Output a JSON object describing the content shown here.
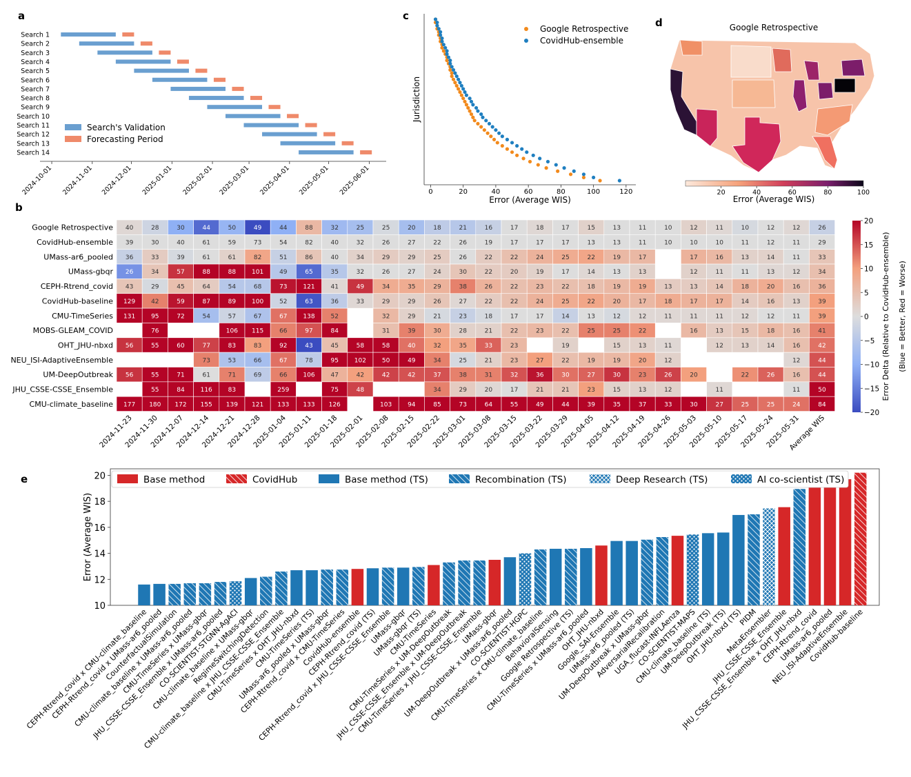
{
  "chart_data": [
    {
      "panel": "a",
      "type": "gantt",
      "rows": [
        "Search 1",
        "Search 2",
        "Search 3",
        "Search 4",
        "Search 5",
        "Search 6",
        "Search 7",
        "Search 8",
        "Search 9",
        "Search 10",
        "Search 11",
        "Search 12",
        "Search 13",
        "Search 14"
      ],
      "validation": [
        [
          "2024-10-08",
          "2024-11-19"
        ],
        [
          "2024-10-22",
          "2024-12-03"
        ],
        [
          "2024-11-05",
          "2024-12-17"
        ],
        [
          "2024-11-19",
          "2024-12-31"
        ],
        [
          "2024-12-03",
          "2025-01-14"
        ],
        [
          "2024-12-17",
          "2025-01-28"
        ],
        [
          "2024-12-31",
          "2025-02-11"
        ],
        [
          "2025-01-14",
          "2025-02-25"
        ],
        [
          "2025-01-28",
          "2025-03-11"
        ],
        [
          "2025-02-11",
          "2025-03-25"
        ],
        [
          "2025-02-25",
          "2025-04-08"
        ],
        [
          "2025-03-11",
          "2025-04-22"
        ],
        [
          "2025-03-25",
          "2025-05-06"
        ],
        [
          "2025-04-08",
          "2025-05-20"
        ]
      ],
      "forecasting": [
        [
          "2024-11-24",
          "2024-12-03"
        ],
        [
          "2024-12-08",
          "2024-12-17"
        ],
        [
          "2024-12-22",
          "2024-12-31"
        ],
        [
          "2025-01-05",
          "2025-01-14"
        ],
        [
          "2025-01-19",
          "2025-01-28"
        ],
        [
          "2025-02-02",
          "2025-02-11"
        ],
        [
          "2025-02-16",
          "2025-02-25"
        ],
        [
          "2025-03-02",
          "2025-03-11"
        ],
        [
          "2025-03-16",
          "2025-03-25"
        ],
        [
          "2025-03-30",
          "2025-04-08"
        ],
        [
          "2025-04-13",
          "2025-04-22"
        ],
        [
          "2025-04-27",
          "2025-05-06"
        ],
        [
          "2025-05-11",
          "2025-05-20"
        ],
        [
          "2025-05-25",
          "2025-06-03"
        ]
      ],
      "xticks": [
        "2024-10-01",
        "2024-11-01",
        "2024-12-01",
        "2025-01-01",
        "2025-02-01",
        "2025-03-01",
        "2025-04-01",
        "2025-05-01",
        "2025-06-01"
      ],
      "legend": [
        "Search's Validation",
        "Forecasting Period"
      ],
      "colors": {
        "validation": "#6a9fd0",
        "forecasting": "#ef8a6a"
      }
    },
    {
      "panel": "c",
      "type": "scatter",
      "xlabel": "Error (Average WIS)",
      "ylabel": "Jurisdiction",
      "xticks": [
        0,
        20,
        40,
        60,
        80,
        100,
        120
      ],
      "xlim": [
        -4,
        126
      ],
      "n_jurisdictions": 52,
      "series": [
        {
          "name": "Google Retrospective",
          "color": "#f28a1c",
          "values": [
            3,
            3,
            4,
            4,
            5,
            5,
            6,
            6,
            7,
            7,
            8,
            9,
            10,
            10,
            11,
            12,
            12,
            13,
            13,
            14,
            15,
            16,
            17,
            18,
            19,
            20,
            21,
            22,
            23,
            24,
            25,
            26,
            27,
            29,
            31,
            33,
            35,
            37,
            39,
            41,
            44,
            47,
            50,
            53,
            57,
            61,
            66,
            71,
            78,
            86,
            94,
            104
          ]
        },
        {
          "name": "CovidHub-ensemble",
          "color": "#1f7fc0",
          "values": [
            3,
            4,
            4,
            5,
            6,
            6,
            7,
            7,
            8,
            9,
            10,
            10,
            11,
            12,
            12,
            13,
            14,
            15,
            16,
            17,
            18,
            19,
            20,
            21,
            22,
            24,
            25,
            26,
            28,
            29,
            31,
            32,
            34,
            36,
            38,
            40,
            42,
            44,
            47,
            50,
            53,
            56,
            59,
            63,
            67,
            72,
            77,
            82,
            88,
            94,
            100,
            116
          ]
        }
      ]
    },
    {
      "panel": "b",
      "type": "heatmap",
      "rows": [
        "Google Retrospective",
        "CovidHub-ensemble",
        "UMass-ar6_pooled",
        "UMass-gbqr",
        "CEPH-Rtrend_covid",
        "CovidHub-baseline",
        "CMU-TimeSeries",
        "MOBS-GLEAM_COVID",
        "OHT_JHU-nbxd",
        "NEU_ISI-AdaptiveEnsemble",
        "UM-DeepOutbreak",
        "JHU_CSSE-CSSE_Ensemble",
        "CMU-climate_baseline"
      ],
      "columns": [
        "2024-11-23",
        "2024-11-30",
        "2024-12-07",
        "2024-12-14",
        "2024-12-21",
        "2024-12-28",
        "2025-01-04",
        "2025-01-11",
        "2025-01-18",
        "2025-02-01",
        "2025-02-08",
        "2025-02-15",
        "2025-02-22",
        "2025-03-01",
        "2025-03-08",
        "2025-03-15",
        "2025-03-22",
        "2025-03-29",
        "2025-04-05",
        "2025-04-12",
        "2025-04-19",
        "2025-04-26",
        "2025-05-03",
        "2025-05-10",
        "2025-05-17",
        "2025-05-24",
        "2025-05-31",
        "Average WIS"
      ],
      "values": [
        [
          40,
          28,
          30,
          44,
          50,
          49,
          44,
          88,
          32,
          25,
          25,
          20,
          18,
          21,
          16,
          17,
          18,
          17,
          15,
          13,
          11,
          10,
          12,
          11,
          10,
          12,
          12,
          26
        ],
        [
          39,
          30,
          40,
          61,
          59,
          73,
          54,
          82,
          40,
          32,
          26,
          27,
          22,
          26,
          19,
          17,
          17,
          17,
          13,
          13,
          11,
          10,
          10,
          10,
          11,
          12,
          11,
          29
        ],
        [
          36,
          33,
          39,
          61,
          61,
          82,
          51,
          86,
          40,
          34,
          29,
          29,
          25,
          26,
          22,
          22,
          24,
          25,
          22,
          19,
          17,
          null,
          17,
          16,
          13,
          14,
          11,
          33
        ],
        [
          26,
          34,
          57,
          88,
          88,
          101,
          49,
          65,
          35,
          32,
          26,
          27,
          24,
          30,
          22,
          20,
          19,
          17,
          14,
          13,
          13,
          null,
          12,
          11,
          11,
          13,
          12,
          34
        ],
        [
          43,
          29,
          45,
          64,
          54,
          68,
          73,
          121,
          41,
          49,
          34,
          35,
          29,
          38,
          26,
          22,
          23,
          22,
          18,
          19,
          19,
          13,
          13,
          14,
          18,
          20,
          16,
          36
        ],
        [
          129,
          42,
          59,
          87,
          89,
          100,
          52,
          63,
          36,
          33,
          29,
          29,
          26,
          27,
          22,
          22,
          24,
          25,
          22,
          20,
          17,
          18,
          17,
          17,
          14,
          16,
          13,
          39
        ],
        [
          131,
          95,
          72,
          54,
          57,
          67,
          67,
          138,
          52,
          null,
          32,
          29,
          21,
          23,
          18,
          17,
          17,
          14,
          13,
          12,
          12,
          11,
          11,
          11,
          12,
          12,
          11,
          39
        ],
        [
          null,
          76,
          null,
          null,
          106,
          115,
          66,
          97,
          84,
          null,
          31,
          39,
          30,
          28,
          21,
          22,
          23,
          22,
          25,
          25,
          22,
          null,
          16,
          13,
          15,
          18,
          16,
          41
        ],
        [
          56,
          55,
          60,
          77,
          83,
          83,
          92,
          43,
          45,
          58,
          58,
          40,
          32,
          35,
          33,
          23,
          null,
          19,
          null,
          15,
          13,
          11,
          null,
          12,
          13,
          14,
          16,
          42
        ],
        [
          null,
          null,
          null,
          73,
          53,
          66,
          67,
          78,
          95,
          102,
          50,
          49,
          34,
          25,
          21,
          23,
          27,
          22,
          19,
          19,
          20,
          12,
          null,
          null,
          null,
          null,
          12,
          44
        ],
        [
          56,
          55,
          71,
          61,
          71,
          69,
          66,
          106,
          47,
          42,
          42,
          42,
          37,
          38,
          31,
          32,
          36,
          30,
          27,
          30,
          23,
          26,
          20,
          null,
          22,
          26,
          16,
          44
        ],
        [
          null,
          55,
          84,
          116,
          83,
          null,
          259,
          null,
          75,
          48,
          null,
          null,
          34,
          29,
          20,
          17,
          21,
          21,
          23,
          15,
          13,
          12,
          null,
          11,
          null,
          null,
          11,
          50
        ],
        [
          177,
          180,
          172,
          155,
          139,
          121,
          133,
          133,
          126,
          null,
          103,
          94,
          85,
          73,
          64,
          55,
          49,
          44,
          39,
          35,
          37,
          33,
          30,
          27,
          25,
          25,
          24,
          84
        ]
      ],
      "reference_row": "CovidHub-ensemble",
      "colorbar": {
        "label": "Error Delta (Relative to CovidHub-ensemble)",
        "sublabel": "(Blue = Better, Red = Worse)",
        "range": [
          -20,
          20
        ],
        "ticks": [
          20,
          15,
          10,
          5,
          0,
          -5,
          -10,
          -15,
          -20
        ]
      }
    },
    {
      "panel": "d",
      "type": "choropleth",
      "title": "Google Retrospective",
      "colorbar": {
        "label": "Error (Average WIS)",
        "range": [
          0,
          100
        ],
        "ticks": [
          20,
          40,
          60,
          80,
          100
        ]
      }
    },
    {
      "panel": "e",
      "type": "bar",
      "ylabel": "Error (Average WIS)",
      "ylim": [
        10,
        20.5
      ],
      "yticks": [
        10,
        12,
        14,
        16,
        18,
        20
      ],
      "legend": [
        "Base method",
        "CovidHub",
        "Base method (TS)",
        "Recombination (TS)",
        "Deep Research (TS)",
        "AI co-scientist (TS)"
      ],
      "colors": {
        "red": "#d62728",
        "blue": "#1f77b4"
      },
      "categories": [
        "CEPH-Rtrend_covid x CMU-climate_baseline",
        "CEPH-Rtrend_covid x UMass-ar6_pooled",
        "CounterfactualSimulation",
        "CMU-climate_baseline x UMass-ar6_pooled",
        "CMU-TimeSeries x UMass-gbqr",
        "JHU_CSSE-CSSE_Ensemble x UMass-ar6_pooled",
        "CO-SCIENTIST-STGNN-AgACI",
        "CMU-climate_baseline x UMass-gbqr",
        "RegimeSwitchingDetection",
        "CMU-climate_baseline x JHU_CSSE-CSSE_Ensemble",
        "CMU-TimeSeries x OHT_JHU-nbxd",
        "CMU-TimeSeries (TS)",
        "UMass-ar6_pooled x UMass-gbqr",
        "CEPH-Rtrend_covid x CMU-TimeSeries",
        "CovidHub-ensemble",
        "CEPH-Rtrend_covid (TS)",
        "CEPH-Rtrend_covid x JHU_CSSE-CSSE_Ensemble",
        "UMass-gbqr",
        "UMass-gbqr (TS)",
        "CMU-TimeSeries",
        "CMU-TimeSeries x UM-DeepOutbreak",
        "JHU_CSSE-CSSE_Ensemble x UM-DeepOutbreak",
        "CMU-TimeSeries x JHU_CSSE-CSSE_Ensemble",
        "UMass-gbqr",
        "UM-DeepOutbreak x UMass-ar6_pooled",
        "CO-SCIENTIST-HGPC",
        "CMU-TimeSeries x CMU-climate_baseline",
        "BehavioralSensing",
        "Google Retrospective (TS)",
        "CMU-TimeSeries x UMass-ar6_pooled",
        "OHT_JHU-nbxd",
        "Google_SAI-Ensemble",
        "UMass-ar6_pooled (TS)",
        "UM-DeepOutbreak x UMass-gbqr",
        "AdversarialRecalibration",
        "UGA_flucast-INFLAenza",
        "CO-SCIENTIST-MAPS",
        "CMU-climate_baseline (TS)",
        "UM-DeepOutbreak (TS)",
        "OHT_JHU-nbxd (TS)",
        "PIDM",
        "MetaEnsembler",
        "JHU_CSSE-CSSE_Ensemble",
        "JHU_CSSE-CSSE_Ensemble x OHT_JHU-nbxd",
        "CEPH-Rtrend_covid",
        "UMass-ar6_pooled",
        "NEU_ISI-AdaptiveEnsemble",
        "CovidHub-baseline"
      ],
      "values": [
        11.6,
        11.65,
        11.65,
        11.7,
        11.7,
        11.8,
        11.85,
        12.1,
        12.2,
        12.6,
        12.7,
        12.7,
        12.75,
        12.75,
        12.8,
        12.85,
        12.9,
        12.9,
        12.95,
        13.1,
        13.3,
        13.45,
        13.45,
        13.5,
        13.7,
        14.0,
        14.3,
        14.35,
        14.35,
        14.4,
        14.6,
        14.95,
        14.95,
        15.05,
        15.25,
        15.35,
        15.45,
        15.55,
        15.6,
        16.95,
        17.0,
        17.45,
        17.55,
        18.95,
        19.15,
        19.65,
        19.7,
        20.2
      ],
      "styles": [
        "blue",
        "blue",
        "hatch",
        "hatch",
        "hatch",
        "hatch",
        "dots",
        "blue",
        "hatch",
        "hatch",
        "blue",
        "blue",
        "hatch",
        "hatch",
        "red",
        "blue",
        "hatch",
        "blue",
        "hatch",
        "red",
        "hatch",
        "hatch",
        "hatch",
        "red",
        "blue",
        "dots",
        "hatch",
        "blue",
        "hatch",
        "blue",
        "red",
        "blue",
        "blue",
        "hatch",
        "hatch",
        "red",
        "dots",
        "blue",
        "blue",
        "blue",
        "hatch",
        "cross",
        "red",
        "hatch",
        "red",
        "red",
        "red",
        "redhatch"
      ]
    }
  ],
  "labels": {
    "a": "a",
    "b": "b",
    "c": "c",
    "d": "d",
    "e": "e"
  }
}
